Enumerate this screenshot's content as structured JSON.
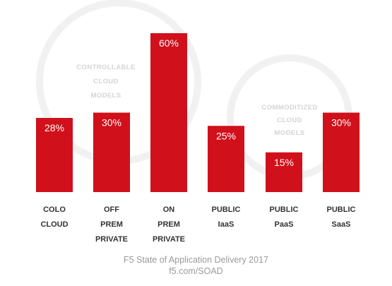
{
  "chart_data": {
    "type": "bar",
    "categories": [
      [
        "COLO",
        "CLOUD"
      ],
      [
        "OFF",
        "PREM",
        "PRIVATE"
      ],
      [
        "ON",
        "PREM",
        "PRIVATE"
      ],
      [
        "PUBLIC",
        "IaaS"
      ],
      [
        "PUBLIC",
        "PaaS"
      ],
      [
        "PUBLIC",
        "SaaS"
      ]
    ],
    "values": [
      28,
      30,
      60,
      25,
      15,
      30
    ],
    "value_labels": [
      "28%",
      "30%",
      "60%",
      "25%",
      "15%",
      "30%"
    ],
    "ylim": [
      0,
      60
    ],
    "bar_color": "#d0101a",
    "grid": false,
    "annotations": [
      {
        "lines": [
          "CONTROLLABLE",
          "CLOUD",
          "MODELS"
        ]
      },
      {
        "lines": [
          "COMMODITIZED",
          "CLOUD",
          "MODELS"
        ]
      }
    ]
  },
  "footer": {
    "line1": "F5 State of Application Delivery 2017",
    "line2": "f5.com/SOAD"
  }
}
